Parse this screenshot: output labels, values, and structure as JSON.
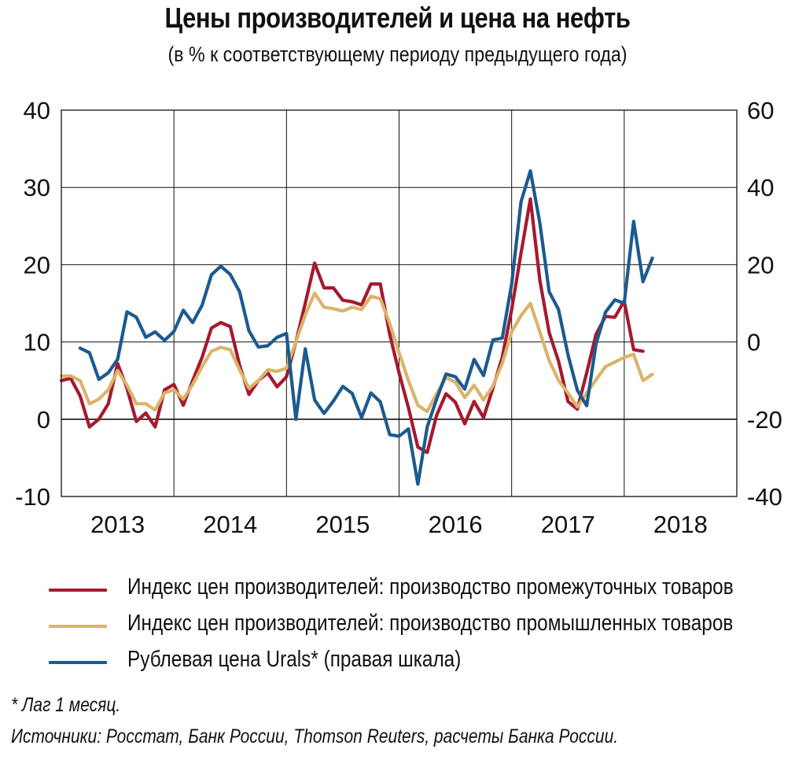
{
  "title": "Цены производителей и цена на нефть",
  "subtitle": "(в % к соответствующему периоду предыдущего года)",
  "footnotes": {
    "lag": "* Лаг 1 месяц.",
    "sources": "Источники: Росстат, Банк России, Thomson Reuters, расчеты Банка России."
  },
  "chart_data": {
    "type": "line",
    "x_axis": {
      "tick_labels": [
        "2013",
        "2014",
        "2015",
        "2016",
        "2017",
        "2018"
      ],
      "range": [
        "2012-12",
        "2018-12"
      ]
    },
    "y_axis_left": {
      "range": [
        -10,
        40
      ],
      "ticks": [
        -10,
        0,
        10,
        20,
        30,
        40
      ],
      "tick_labels": [
        "-10",
        "0",
        "10",
        "20",
        "30",
        "40"
      ]
    },
    "y_axis_right": {
      "range": [
        -40,
        60
      ],
      "ticks": [
        -40,
        -20,
        0,
        20,
        40,
        60
      ],
      "tick_labels": [
        "-40",
        "-20",
        "0",
        "20",
        "40",
        "60"
      ]
    },
    "grid": true,
    "zero_line": true,
    "legend_position": "bottom",
    "series": [
      {
        "name": "Индекс цен производителей: производство промежуточных товаров",
        "axis": "left",
        "color": "#a6192e",
        "start": "2012-12",
        "values": [
          5,
          5.3,
          3,
          -1,
          0,
          2,
          7.2,
          4,
          -0.3,
          0.8,
          -1,
          3.8,
          4.5,
          1.8,
          5,
          8,
          11.8,
          12.5,
          12,
          7,
          3.2,
          5,
          6,
          4.2,
          5.5,
          10,
          15,
          20.2,
          17,
          17,
          15.4,
          15.2,
          14.8,
          17.5,
          17.5,
          11,
          6,
          1.5,
          -3.6,
          -4.3,
          0.5,
          3.3,
          2.2,
          -0.6,
          2.3,
          0.2,
          4,
          8,
          14.2,
          21.5,
          28.5,
          18,
          11.2,
          7.5,
          2.3,
          1.3,
          6,
          11,
          13.3,
          13.2,
          15.3,
          9,
          8.8
        ]
      },
      {
        "name": "Индекс цен производителей: производство промышленных товаров",
        "axis": "left",
        "color": "#dbb36a",
        "start": "2012-12",
        "values": [
          5.6,
          5.6,
          5,
          2,
          2.6,
          3.8,
          6.3,
          4.4,
          2,
          2,
          1.2,
          3.4,
          3.8,
          2.6,
          4.5,
          6.8,
          8.8,
          9.3,
          9,
          6.4,
          4,
          5,
          6.4,
          6.2,
          6.6,
          10,
          13.5,
          16.3,
          14.5,
          14.3,
          14,
          14.5,
          14.2,
          15.9,
          15.6,
          12.4,
          8.6,
          5,
          1.8,
          1,
          3.3,
          5.4,
          4.8,
          2.8,
          4.4,
          2.5,
          4.3,
          7.2,
          11.3,
          13.4,
          15,
          11.3,
          7.6,
          5,
          3.4,
          1.6,
          3.4,
          5.1,
          6.8,
          7.4,
          8,
          8.4,
          5,
          5.8
        ]
      },
      {
        "name": "Рублевая цена Urals* (правая шкала)",
        "axis": "right",
        "color": "#1c5a8f",
        "start": "2013-02",
        "values": [
          -1.6,
          -2.8,
          -9.7,
          -8,
          -4.5,
          7.8,
          6.4,
          1.2,
          2.6,
          0.4,
          2.7,
          8.2,
          5,
          9.5,
          17.4,
          19.6,
          17.5,
          13,
          2.9,
          -1.3,
          -1,
          1.2,
          2.2,
          -20,
          -1.8,
          -15,
          -18.5,
          -15.3,
          -11.5,
          -13.3,
          -19.6,
          -13.2,
          -15.5,
          -24,
          -24.4,
          -22.5,
          -36.8,
          -22,
          -14.8,
          -8.3,
          -9,
          -12.2,
          -4.5,
          -8.7,
          0.5,
          1,
          15,
          36.3,
          44.3,
          30.8,
          13,
          8.4,
          -3.3,
          -12.5,
          -16.5,
          -0.5,
          7.7,
          10.9,
          10,
          31.2,
          15.6,
          21.7
        ]
      }
    ]
  }
}
